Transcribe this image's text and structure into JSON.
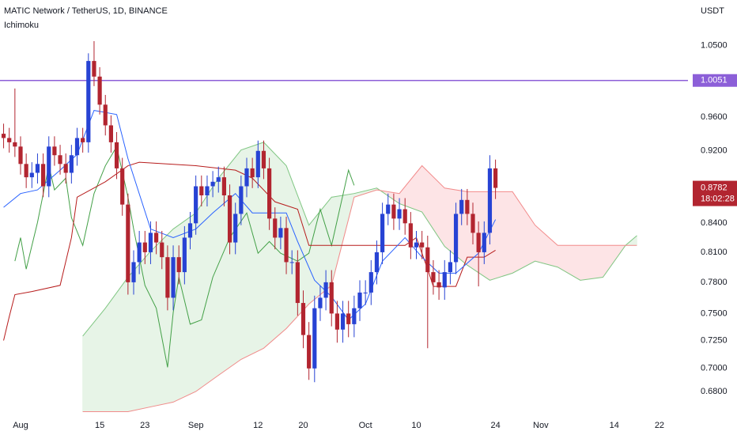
{
  "chart_data": {
    "type": "candlestick",
    "title": "MATIC Network / TetherUS, 1D, BINANCE",
    "subtitle": "Ichimoku",
    "y_axis_label": "USDT",
    "log_scale": true,
    "grid": false,
    "up_color": "#2743d4",
    "down_color": "#b22530",
    "x": [
      "Jul 29",
      "Jul 30",
      "Jul 31",
      "Aug 1",
      "Aug 2",
      "Aug 3",
      "Aug 4",
      "Aug 5",
      "Aug 6",
      "Aug 7",
      "Aug 8",
      "Aug 9",
      "Aug 10",
      "Aug 11",
      "Aug 12",
      "Aug 13",
      "Aug 14",
      "Aug 15",
      "Aug 16",
      "Aug 17",
      "Aug 18",
      "Aug 19",
      "Aug 20",
      "Aug 21",
      "Aug 22",
      "Aug 23",
      "Aug 24",
      "Aug 25",
      "Aug 26",
      "Aug 27",
      "Aug 28",
      "Aug 29",
      "Aug 30",
      "Aug 31",
      "Sep 1",
      "Sep 2",
      "Sep 3",
      "Sep 4",
      "Sep 5",
      "Sep 6",
      "Sep 7",
      "Sep 8",
      "Sep 9",
      "Sep 10",
      "Sep 11",
      "Sep 12",
      "Sep 13",
      "Sep 14",
      "Sep 15",
      "Sep 16",
      "Sep 17",
      "Sep 18",
      "Sep 19",
      "Sep 20",
      "Sep 21",
      "Sep 22",
      "Sep 23",
      "Sep 24",
      "Sep 25",
      "Sep 26",
      "Sep 27",
      "Sep 28",
      "Sep 29",
      "Sep 30",
      "Oct 1",
      "Oct 2",
      "Oct 3",
      "Oct 4",
      "Oct 5",
      "Oct 6",
      "Oct 7",
      "Oct 8",
      "Oct 9",
      "Oct 10",
      "Oct 11",
      "Oct 12",
      "Oct 13",
      "Oct 14",
      "Oct 15",
      "Oct 16",
      "Oct 17",
      "Oct 18",
      "Oct 19",
      "Oct 20",
      "Oct 21",
      "Oct 22",
      "Oct 23",
      "Oct 24",
      "Oct 25",
      "Oct 26",
      "Oct 27",
      "Oct 28",
      "Oct 29",
      "Oct 30",
      "Oct 31",
      "Nov 1",
      "Nov 2",
      "Nov 3",
      "Nov 4",
      "Nov 5",
      "Nov 6",
      "Nov 7",
      "Nov 8",
      "Nov 9",
      "Nov 10",
      "Nov 11",
      "Nov 12",
      "Nov 13",
      "Nov 14",
      "Nov 15",
      "Nov 16",
      "Nov 17",
      "Nov 18",
      "Nov 19",
      "Nov 20",
      "Nov 21",
      "Nov 22"
    ],
    "open": [
      0.94,
      0.935,
      0.93,
      0.925,
      0.905,
      0.89,
      0.895,
      0.905,
      0.88,
      0.925,
      0.915,
      0.905,
      0.895,
      0.915,
      0.935,
      0.93,
      1.03,
      1.01,
      0.975,
      0.95,
      0.93,
      0.9,
      0.86,
      0.78,
      0.8,
      0.82,
      0.81,
      0.83,
      0.82,
      0.805,
      0.765,
      0.805,
      0.79,
      0.825,
      0.84,
      0.88,
      0.87,
      0.88,
      0.885,
      0.89,
      0.87,
      0.82,
      0.85,
      0.88,
      0.9,
      0.89,
      0.92,
      0.9,
      0.845,
      0.825,
      0.835,
      0.8,
      0.8,
      0.76,
      0.73,
      0.7,
      0.755,
      0.765,
      0.78,
      0.75,
      0.735,
      0.75,
      0.74,
      0.755,
      0.77,
      0.77,
      0.79,
      0.81,
      0.85,
      0.86,
      0.845,
      0.855,
      0.84,
      0.815,
      0.82,
      0.815,
      0.79,
      0.78,
      0.775,
      0.79,
      0.8,
      0.85,
      0.865,
      0.85,
      0.83,
      0.81,
      0.83,
      0.9,
      null,
      null,
      null,
      null,
      null,
      null,
      null,
      null,
      null,
      null,
      null,
      null,
      null,
      null,
      null,
      null,
      null,
      null,
      null,
      null,
      null,
      null,
      null,
      null,
      null,
      null,
      null,
      null,
      null
    ],
    "high": [
      0.952,
      0.947,
      0.995,
      0.937,
      0.917,
      0.907,
      0.917,
      0.917,
      0.937,
      0.937,
      0.927,
      0.917,
      0.927,
      0.947,
      0.947,
      1.04,
      1.056,
      1.022,
      0.987,
      0.962,
      0.942,
      0.912,
      0.872,
      0.812,
      0.832,
      0.832,
      0.842,
      0.842,
      0.832,
      0.817,
      0.817,
      0.817,
      0.837,
      0.852,
      0.892,
      0.892,
      0.892,
      0.897,
      0.902,
      0.902,
      0.882,
      0.862,
      0.892,
      0.912,
      0.912,
      0.932,
      0.932,
      0.912,
      0.857,
      0.847,
      0.847,
      0.812,
      0.812,
      0.772,
      0.742,
      0.767,
      0.777,
      0.792,
      0.792,
      0.762,
      0.762,
      0.762,
      0.767,
      0.782,
      0.782,
      0.802,
      0.822,
      0.862,
      0.872,
      0.872,
      0.867,
      0.867,
      0.852,
      0.832,
      0.832,
      0.827,
      0.802,
      0.792,
      0.802,
      0.812,
      0.862,
      0.877,
      0.877,
      0.862,
      0.842,
      0.842,
      0.915,
      0.91,
      null,
      null,
      null,
      null,
      null,
      null,
      null,
      null,
      null,
      null,
      null,
      null,
      null,
      null,
      null,
      null,
      null,
      null,
      null,
      null,
      null,
      null,
      null,
      null,
      null,
      null,
      null,
      null,
      null
    ],
    "low": [
      0.923,
      0.918,
      0.913,
      0.893,
      0.878,
      0.878,
      0.883,
      0.868,
      0.868,
      0.903,
      0.893,
      0.883,
      0.883,
      0.903,
      0.918,
      0.918,
      0.998,
      0.963,
      0.938,
      0.918,
      0.888,
      0.848,
      0.768,
      0.768,
      0.788,
      0.798,
      0.798,
      0.808,
      0.793,
      0.753,
      0.753,
      0.778,
      0.778,
      0.813,
      0.828,
      0.858,
      0.858,
      0.868,
      0.873,
      0.858,
      0.808,
      0.808,
      0.838,
      0.868,
      0.878,
      0.878,
      0.888,
      0.833,
      0.813,
      0.813,
      0.788,
      0.788,
      0.748,
      0.718,
      0.69,
      0.688,
      0.743,
      0.753,
      0.738,
      0.723,
      0.723,
      0.728,
      0.728,
      0.743,
      0.758,
      0.758,
      0.778,
      0.798,
      0.838,
      0.833,
      0.833,
      0.828,
      0.803,
      0.803,
      0.803,
      0.718,
      0.768,
      0.763,
      0.763,
      0.778,
      0.788,
      0.838,
      0.838,
      0.818,
      0.776,
      0.798,
      0.818,
      0.866,
      null,
      null,
      null,
      null,
      null,
      null,
      null,
      null,
      null,
      null,
      null,
      null,
      null,
      null,
      null,
      null,
      null,
      null,
      null,
      null,
      null,
      null,
      null,
      null,
      null,
      null,
      null,
      null,
      null
    ],
    "close": [
      0.935,
      0.93,
      0.925,
      0.905,
      0.89,
      0.895,
      0.905,
      0.88,
      0.925,
      0.915,
      0.905,
      0.895,
      0.915,
      0.935,
      0.93,
      1.03,
      1.01,
      0.975,
      0.95,
      0.93,
      0.9,
      0.86,
      0.78,
      0.8,
      0.82,
      0.81,
      0.83,
      0.82,
      0.805,
      0.765,
      0.805,
      0.79,
      0.825,
      0.84,
      0.88,
      0.87,
      0.88,
      0.885,
      0.89,
      0.87,
      0.82,
      0.85,
      0.88,
      0.9,
      0.89,
      0.92,
      0.9,
      0.845,
      0.825,
      0.835,
      0.8,
      0.8,
      0.76,
      0.73,
      0.7,
      0.755,
      0.765,
      0.78,
      0.75,
      0.735,
      0.75,
      0.74,
      0.755,
      0.77,
      0.77,
      0.79,
      0.81,
      0.85,
      0.86,
      0.845,
      0.855,
      0.84,
      0.815,
      0.82,
      0.815,
      0.79,
      0.78,
      0.775,
      0.79,
      0.8,
      0.85,
      0.865,
      0.85,
      0.83,
      0.81,
      0.83,
      0.9,
      0.8782,
      null,
      null,
      null,
      null,
      null,
      null,
      null,
      null,
      null,
      null,
      null,
      null,
      null,
      null,
      null,
      null,
      null,
      null,
      null,
      null,
      null,
      null,
      null,
      null,
      null,
      null,
      null,
      null,
      null
    ],
    "countdown": "18:02:28",
    "last_price_color": "#b22530",
    "hline": {
      "value": 1.0051,
      "color": "#8c5fd8"
    },
    "conversion_line": {
      "color": "#2962ff",
      "x": [
        "Jul 29",
        "Aug 1",
        "Aug 4",
        "Aug 8",
        "Aug 11",
        "Aug 14",
        "Aug 18",
        "Aug 20",
        "Aug 24",
        "Aug 28",
        "Sep 1",
        "Sep 4",
        "Sep 8",
        "Sep 11",
        "Sep 15",
        "Sep 17",
        "Sep 19",
        "Sep 22",
        "Sep 25",
        "Sep 28",
        "Oct 1",
        "Oct 4",
        "Oct 8",
        "Oct 11",
        "Oct 14",
        "Oct 17",
        "Oct 21",
        "Oct 24"
      ],
      "values": [
        0.857,
        0.872,
        0.876,
        0.898,
        0.916,
        0.968,
        0.963,
        0.911,
        0.834,
        0.825,
        0.834,
        0.851,
        0.872,
        0.851,
        0.851,
        0.851,
        0.821,
        0.782,
        0.766,
        0.744,
        0.759,
        0.801,
        0.825,
        0.805,
        0.789,
        0.789,
        0.809,
        0.844
      ]
    },
    "base_line": {
      "color": "#b71c1c",
      "x": [
        "Jul 29",
        "Jul 30",
        "Jul 31",
        "Aug 3",
        "Aug 8",
        "Aug 10",
        "Aug 11",
        "Aug 16",
        "Aug 20",
        "Aug 22",
        "Sep 1",
        "Sep 8",
        "Sep 11",
        "Sep 15",
        "Sep 19",
        "Sep 21",
        "Sep 28",
        "Oct 8",
        "Oct 10",
        "Oct 12",
        "Oct 13",
        "Oct 17",
        "Oct 19",
        "Oct 22",
        "Oct 24"
      ],
      "values": [
        0.725,
        0.747,
        0.768,
        0.771,
        0.777,
        0.825,
        0.868,
        0.885,
        0.903,
        0.907,
        0.903,
        0.898,
        0.889,
        0.863,
        0.855,
        0.817,
        0.817,
        0.817,
        0.825,
        0.793,
        0.776,
        0.776,
        0.805,
        0.805,
        0.812
      ]
    },
    "lagging_span": {
      "color": "#43a047",
      "x": [
        "Jul 31",
        "Aug 1",
        "Aug 2",
        "Aug 4",
        "Aug 6",
        "Aug 7",
        "Aug 9",
        "Aug 10",
        "Aug 12",
        "Aug 14",
        "Aug 16",
        "Aug 18",
        "Aug 20",
        "Aug 21",
        "Aug 23",
        "Aug 25",
        "Aug 27",
        "Aug 28",
        "Aug 29",
        "Aug 31",
        "Sep 2",
        "Sep 4",
        "Sep 7",
        "Sep 10",
        "Sep 12",
        "Sep 14",
        "Sep 16",
        "Sep 19",
        "Sep 21",
        "Sep 23",
        "Sep 25",
        "Sep 28",
        "Sep 29"
      ],
      "values": [
        0.801,
        0.825,
        0.793,
        0.841,
        0.903,
        0.876,
        0.889,
        0.846,
        0.817,
        0.872,
        0.903,
        0.925,
        0.868,
        0.834,
        0.777,
        0.755,
        0.701,
        0.751,
        0.785,
        0.74,
        0.744,
        0.785,
        0.825,
        0.851,
        0.809,
        0.821,
        0.809,
        0.801,
        0.809,
        0.855,
        0.817,
        0.898,
        0.881
      ]
    },
    "cloud": {
      "up_color": "#4caf50",
      "down_color": "#f23645",
      "x": [
        "Aug 12",
        "Aug 16",
        "Aug 20",
        "Aug 24",
        "Aug 28",
        "Sep 1",
        "Sep 5",
        "Sep 9",
        "Sep 13",
        "Sep 17",
        "Sep 21",
        "Sep 25",
        "Sep 29",
        "Oct 3",
        "Oct 7",
        "Oct 11",
        "Oct 15",
        "Oct 19",
        "Oct 23",
        "Oct 27",
        "Oct 31",
        "Nov 4",
        "Nov 8",
        "Nov 12",
        "Nov 16",
        "Nov 18"
      ],
      "span_a": {
        "color": "#81c784",
        "values": [
          0.729,
          0.755,
          0.785,
          0.811,
          0.834,
          0.851,
          0.889,
          0.921,
          0.93,
          0.903,
          0.838,
          0.868,
          0.872,
          0.878,
          0.861,
          0.852,
          0.816,
          0.797,
          0.782,
          0.789,
          0.801,
          0.795,
          0.782,
          0.785,
          0.817,
          0.827
        ]
      },
      "span_b": {
        "color": "#f28b8b",
        "values": [
          0.663,
          0.663,
          0.663,
          0.667,
          0.671,
          0.68,
          0.694,
          0.708,
          0.718,
          0.736,
          0.759,
          0.777,
          0.868,
          0.876,
          0.872,
          0.903,
          0.878,
          0.874,
          0.874,
          0.874,
          0.838,
          0.817,
          0.817,
          0.817,
          0.817,
          0.817
        ]
      }
    },
    "ylim": [
      0.662,
      1.112
    ],
    "yticks": [
      {
        "value": 1.05,
        "label": "1.0500"
      },
      {
        "value": 0.96,
        "label": "0.9600"
      },
      {
        "value": 0.92,
        "label": "0.9200"
      },
      {
        "value": 0.84,
        "label": "0.8400"
      },
      {
        "value": 0.81,
        "label": "0.8100"
      },
      {
        "value": 0.78,
        "label": "0.7800"
      },
      {
        "value": 0.75,
        "label": "0.7500"
      },
      {
        "value": 0.725,
        "label": "0.7250"
      },
      {
        "value": 0.7,
        "label": "0.7000"
      },
      {
        "value": 0.68,
        "label": "0.6800"
      }
    ],
    "xticks": [
      {
        "value": "Aug 1",
        "label": "Aug"
      },
      {
        "value": "Aug 15",
        "label": "15"
      },
      {
        "value": "Aug 23",
        "label": "23"
      },
      {
        "value": "Sep 1",
        "label": "Sep"
      },
      {
        "value": "Sep 12",
        "label": "12"
      },
      {
        "value": "Sep 20",
        "label": "20"
      },
      {
        "value": "Oct 1",
        "label": "Oct"
      },
      {
        "value": "Oct 10",
        "label": "10"
      },
      {
        "value": "Oct 24",
        "label": "24"
      },
      {
        "value": "Nov 1",
        "label": "Nov"
      },
      {
        "value": "Nov 14",
        "label": "14"
      },
      {
        "value": "Nov 22",
        "label": "22"
      }
    ]
  }
}
